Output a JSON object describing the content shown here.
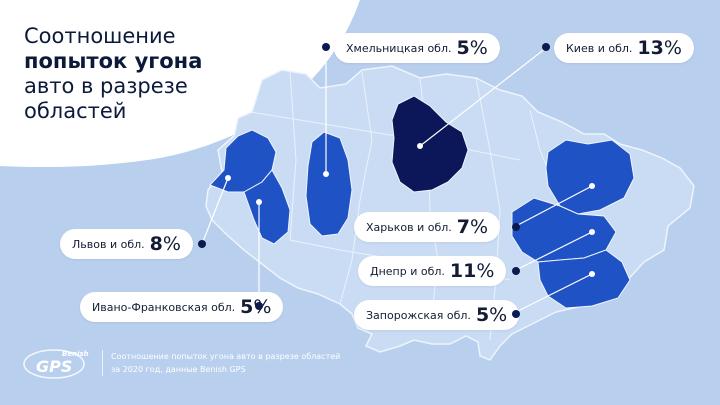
{
  "title": {
    "line1": "Соотношение",
    "line2": "попыток угона",
    "line3": "авто в разрезе",
    "line4": "областей"
  },
  "regions": [
    {
      "label": "Хмельницкая обл.",
      "value": "5",
      "unit": "%"
    },
    {
      "label": "Киев и обл.",
      "value": "13",
      "unit": "%"
    },
    {
      "label": "Львов и обл.",
      "value": "8",
      "unit": "%"
    },
    {
      "label": "Ивано-Франковская обл.",
      "value": "5",
      "unit": "%"
    },
    {
      "label": "Харьков и обл.",
      "value": "7",
      "unit": "%"
    },
    {
      "label": "Днепр и обл.",
      "value": "11",
      "unit": "%"
    },
    {
      "label": "Запорожская обл.",
      "value": "5",
      "unit": "%"
    }
  ],
  "logo": {
    "brand": "Benish",
    "text": "GPS"
  },
  "footer": {
    "line1": "Соотношение попыток угона авто в разрезе областей",
    "line2": "за 2020 год, данные Benish GPS"
  },
  "colors": {
    "background": "#b9cfee",
    "map_light": "#c9dcf4",
    "region_mid": "#1f52c4",
    "region_dark": "#0b1759",
    "callout": "#ffffff"
  }
}
